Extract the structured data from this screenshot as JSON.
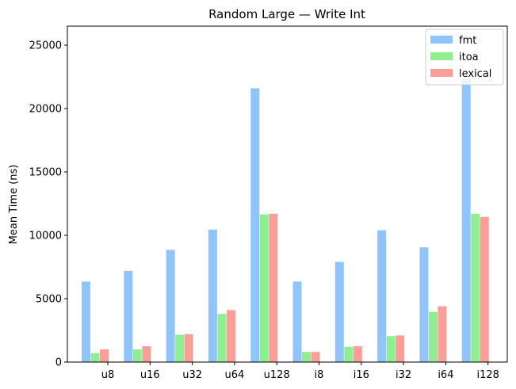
{
  "chart_data": {
    "type": "bar",
    "title": "Random Large — Write Int",
    "xlabel": "",
    "ylabel": "Mean Time (ns)",
    "categories": [
      "u8",
      "u16",
      "u32",
      "u64",
      "u128",
      "i8",
      "i16",
      "i32",
      "i64",
      "i128"
    ],
    "series": [
      {
        "name": "fmt",
        "color": "#90c5fb",
        "values": [
          6350,
          7200,
          8850,
          10450,
          21600,
          6350,
          7900,
          10400,
          9050,
          22300
        ]
      },
      {
        "name": "itoa",
        "color": "#90ee90",
        "values": [
          700,
          1000,
          2150,
          3800,
          11650,
          800,
          1200,
          2050,
          3950,
          11700
        ]
      },
      {
        "name": "lexical",
        "color": "#fa9e98",
        "values": [
          1000,
          1250,
          2200,
          4100,
          11700,
          800,
          1250,
          2100,
          4400,
          11450
        ]
      }
    ],
    "ylim": [
      0,
      26500
    ],
    "yticks": [
      0,
      5000,
      10000,
      15000,
      20000,
      25000
    ],
    "grid": false,
    "legend_position": "top-right"
  }
}
